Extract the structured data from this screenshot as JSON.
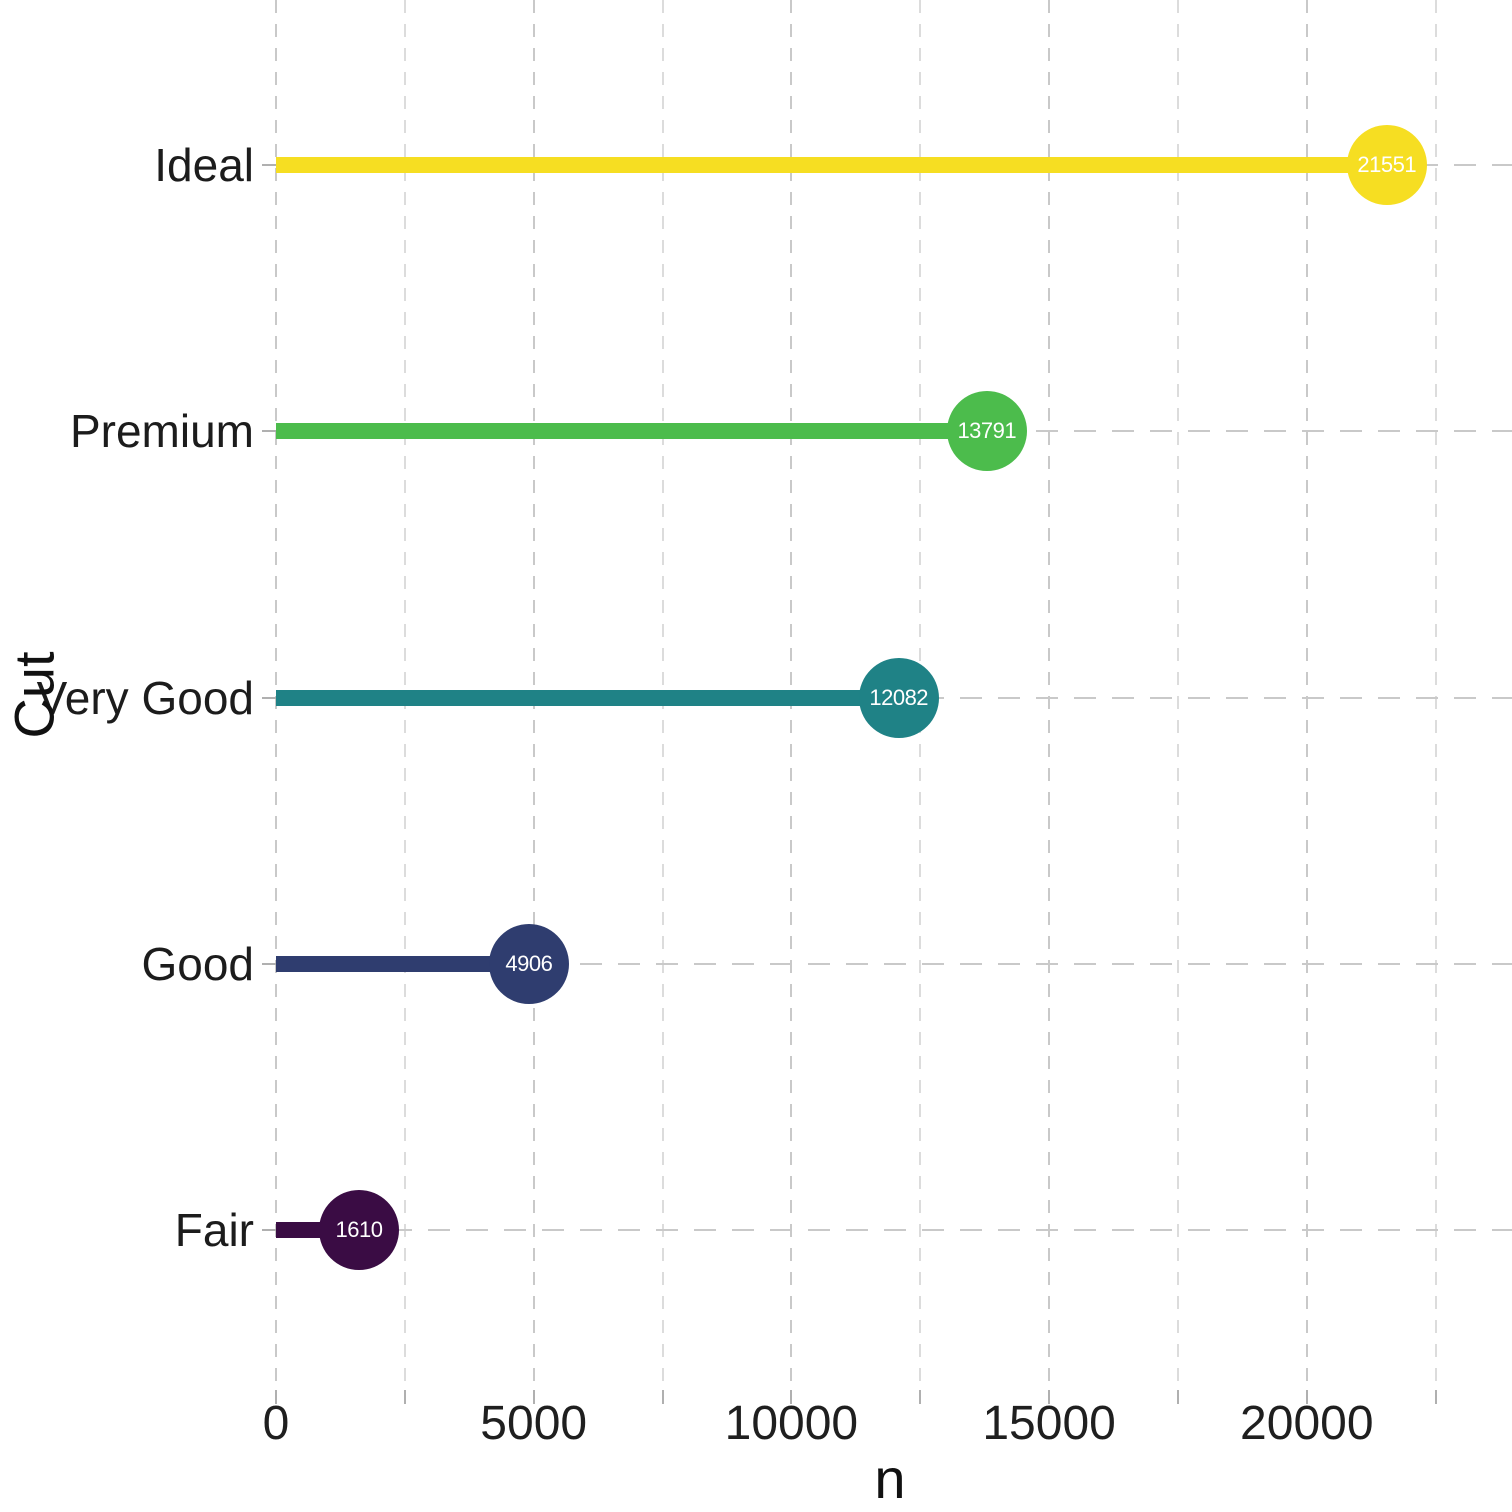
{
  "chart_data": {
    "type": "bar",
    "variant": "horizontal-lollipop",
    "title": "",
    "xlabel": "n",
    "ylabel": "Cut",
    "categories": [
      "Ideal",
      "Premium",
      "Very Good",
      "Good",
      "Fair"
    ],
    "values": [
      21551,
      13791,
      12082,
      4906,
      1610
    ],
    "colors": [
      "#F6DE22",
      "#4CBC4C",
      "#1F8286",
      "#2F3D6F",
      "#3A0C44"
    ],
    "value_label_color": "#FFFFFF",
    "xlim": [
      0,
      22500
    ],
    "x_major_ticks": [
      0,
      5000,
      10000,
      15000,
      20000
    ],
    "x_minor_step": 2500,
    "grid": "dashed-major-and-minor-vertical, dashed-horizontal-at-each-category",
    "legend": "none",
    "background": "#FFFFFF"
  }
}
